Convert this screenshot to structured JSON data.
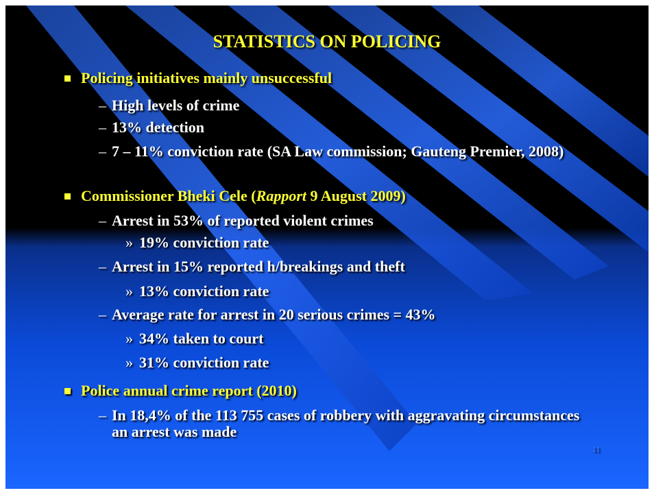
{
  "title": "STATISTICS ON POLICING",
  "sections": [
    {
      "heading": "Policing initiatives mainly unsuccessful",
      "points": [
        {
          "text": "High levels of crime"
        },
        {
          "text": "13% detection"
        },
        {
          "text": "7 – 11% conviction rate (SA Law commission; Gauteng Premier, 2008)"
        }
      ]
    },
    {
      "heading": {
        "before": "Commissioner Bheki Cele (",
        "italic": "Rapport",
        "after": " 9 August 2009)"
      },
      "points": [
        {
          "text": "Arrest in 53% of reported violent crimes",
          "subpoints": [
            "19% conviction rate"
          ]
        },
        {
          "text": "Arrest in 15% reported h/breakings and theft",
          "subpoints": [
            "13% conviction rate"
          ]
        },
        {
          "text": "Average rate for arrest in 20 serious crimes = 43%",
          "subpoints": [
            "34% taken to court",
            "31% conviction rate"
          ]
        }
      ]
    },
    {
      "heading": "Police annual crime report (2010)",
      "points": [
        {
          "text": "In 18,4% of the 113 755 cases of robbery with aggravating circumstances an arrest was made"
        }
      ]
    }
  ],
  "page_number": "11"
}
